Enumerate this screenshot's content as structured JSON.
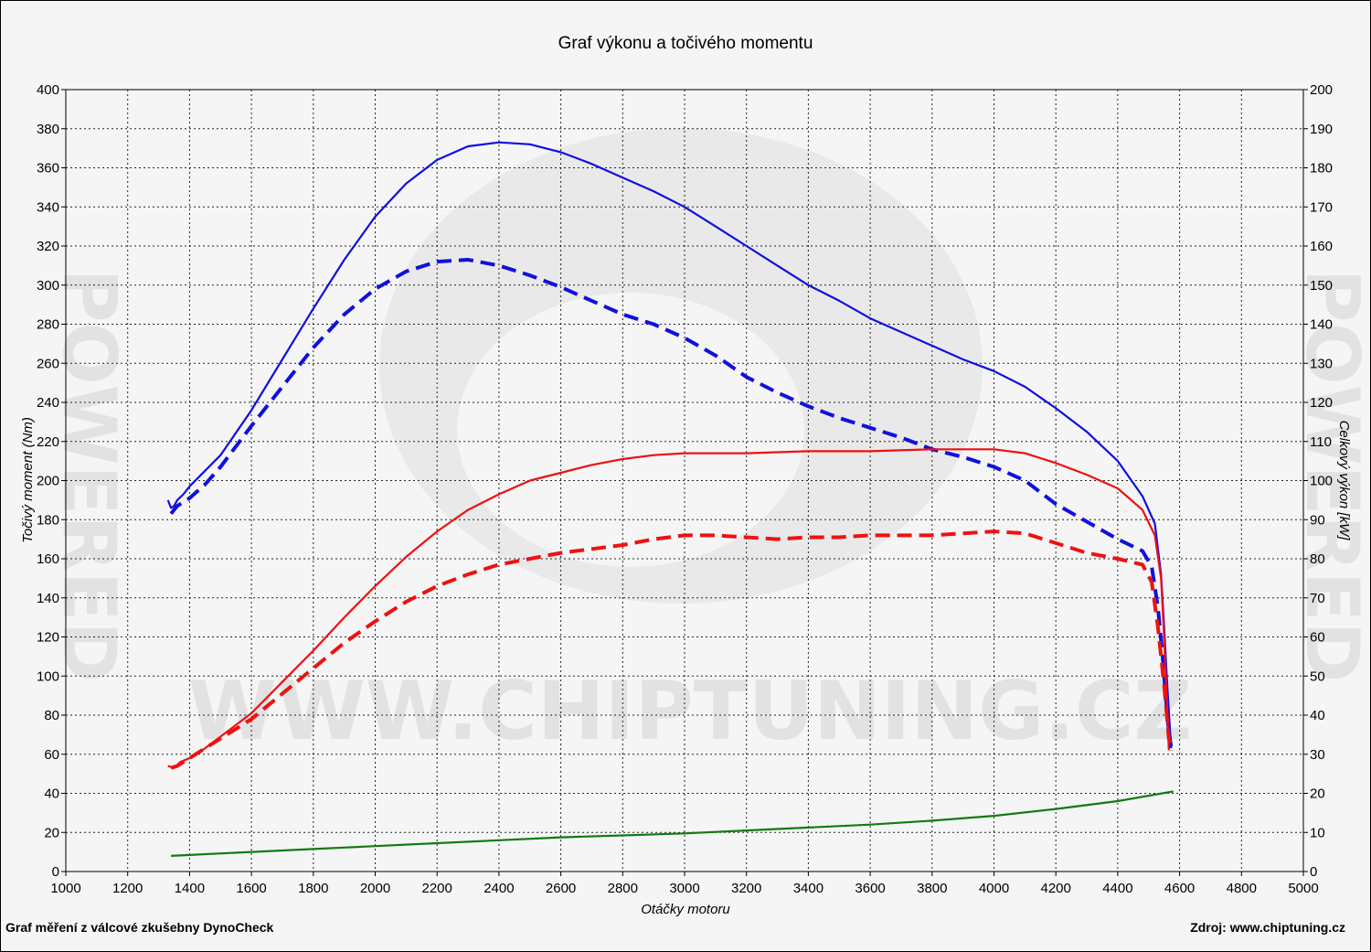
{
  "chart_data": {
    "type": "line",
    "title": "Graf výkonu a točivého momentu",
    "xlabel": "Otáčky motoru",
    "ylabel_left": "Točivý moment (Nm)",
    "ylabel_right": "Celkový výkon [kW]",
    "xlim": [
      1000,
      5000
    ],
    "ylim_left": [
      0,
      400
    ],
    "ylim_right": [
      0,
      200
    ],
    "x_ticks": [
      1000,
      1200,
      1400,
      1600,
      1800,
      2000,
      2200,
      2400,
      2600,
      2800,
      3000,
      3200,
      3400,
      3600,
      3800,
      4000,
      4200,
      4400,
      4600,
      4800,
      5000
    ],
    "y_ticks_left": [
      0,
      20,
      40,
      60,
      80,
      100,
      120,
      140,
      160,
      180,
      200,
      220,
      240,
      260,
      280,
      300,
      320,
      340,
      360,
      380,
      400
    ],
    "y_ticks_right": [
      0,
      10,
      20,
      30,
      40,
      50,
      60,
      70,
      80,
      90,
      100,
      110,
      120,
      130,
      140,
      150,
      160,
      170,
      180,
      190,
      200
    ],
    "grid": true,
    "series": [
      {
        "axis": "left",
        "color": "#1010dd",
        "style": "solid",
        "points": [
          [
            1330,
            190
          ],
          [
            1340,
            186
          ],
          [
            1350,
            187
          ],
          [
            1360,
            190
          ],
          [
            1380,
            193
          ],
          [
            1400,
            197
          ],
          [
            1450,
            205
          ],
          [
            1500,
            213
          ],
          [
            1600,
            236
          ],
          [
            1700,
            262
          ],
          [
            1800,
            288
          ],
          [
            1900,
            313
          ],
          [
            2000,
            335
          ],
          [
            2100,
            352
          ],
          [
            2200,
            364
          ],
          [
            2300,
            371
          ],
          [
            2400,
            373
          ],
          [
            2500,
            372
          ],
          [
            2600,
            368
          ],
          [
            2700,
            362
          ],
          [
            2800,
            355
          ],
          [
            2900,
            348
          ],
          [
            3000,
            340
          ],
          [
            3100,
            330
          ],
          [
            3200,
            320
          ],
          [
            3300,
            310
          ],
          [
            3400,
            300
          ],
          [
            3500,
            292
          ],
          [
            3600,
            283
          ],
          [
            3700,
            276
          ],
          [
            3800,
            269
          ],
          [
            3900,
            262
          ],
          [
            4000,
            256
          ],
          [
            4100,
            248
          ],
          [
            4200,
            237
          ],
          [
            4300,
            225
          ],
          [
            4400,
            210
          ],
          [
            4480,
            192
          ],
          [
            4520,
            178
          ],
          [
            4540,
            152
          ],
          [
            4550,
            125
          ],
          [
            4560,
            95
          ],
          [
            4570,
            70
          ],
          [
            4575,
            64
          ]
        ]
      },
      {
        "axis": "left",
        "color": "#1010dd",
        "style": "dashed",
        "points": [
          [
            1340,
            183
          ],
          [
            1360,
            187
          ],
          [
            1400,
            191
          ],
          [
            1450,
            198
          ],
          [
            1500,
            207
          ],
          [
            1600,
            228
          ],
          [
            1700,
            248
          ],
          [
            1800,
            268
          ],
          [
            1900,
            285
          ],
          [
            2000,
            298
          ],
          [
            2100,
            307
          ],
          [
            2200,
            312
          ],
          [
            2300,
            313
          ],
          [
            2400,
            310
          ],
          [
            2500,
            305
          ],
          [
            2600,
            299
          ],
          [
            2700,
            292
          ],
          [
            2800,
            285
          ],
          [
            2900,
            280
          ],
          [
            3000,
            273
          ],
          [
            3100,
            264
          ],
          [
            3200,
            253
          ],
          [
            3300,
            245
          ],
          [
            3400,
            238
          ],
          [
            3500,
            232
          ],
          [
            3600,
            227
          ],
          [
            3700,
            222
          ],
          [
            3800,
            216
          ],
          [
            3900,
            212
          ],
          [
            4000,
            207
          ],
          [
            4100,
            200
          ],
          [
            4200,
            188
          ],
          [
            4300,
            179
          ],
          [
            4400,
            170
          ],
          [
            4480,
            164
          ],
          [
            4510,
            156
          ],
          [
            4530,
            135
          ],
          [
            4545,
            110
          ],
          [
            4560,
            80
          ],
          [
            4570,
            63
          ]
        ]
      },
      {
        "axis": "left",
        "color": "#ee1111",
        "style": "solid",
        "points": [
          [
            1330,
            54
          ],
          [
            1350,
            53
          ],
          [
            1370,
            56
          ],
          [
            1400,
            58
          ],
          [
            1450,
            63
          ],
          [
            1500,
            69
          ],
          [
            1600,
            81
          ],
          [
            1700,
            97
          ],
          [
            1800,
            113
          ],
          [
            1900,
            130
          ],
          [
            2000,
            146
          ],
          [
            2100,
            161
          ],
          [
            2200,
            174
          ],
          [
            2300,
            185
          ],
          [
            2400,
            193
          ],
          [
            2500,
            200
          ],
          [
            2600,
            204
          ],
          [
            2700,
            208
          ],
          [
            2800,
            211
          ],
          [
            2900,
            213
          ],
          [
            3000,
            214
          ],
          [
            3200,
            214
          ],
          [
            3400,
            215
          ],
          [
            3600,
            215
          ],
          [
            3800,
            216
          ],
          [
            4000,
            216
          ],
          [
            4100,
            214
          ],
          [
            4200,
            209
          ],
          [
            4300,
            203
          ],
          [
            4400,
            196
          ],
          [
            4480,
            185
          ],
          [
            4520,
            172
          ],
          [
            4540,
            150
          ],
          [
            4550,
            120
          ],
          [
            4558,
            90
          ],
          [
            4565,
            62
          ]
        ]
      },
      {
        "axis": "left",
        "color": "#ee1111",
        "style": "dashed",
        "points": [
          [
            1340,
            53
          ],
          [
            1360,
            54
          ],
          [
            1400,
            58
          ],
          [
            1450,
            63
          ],
          [
            1500,
            68
          ],
          [
            1600,
            78
          ],
          [
            1700,
            91
          ],
          [
            1800,
            104
          ],
          [
            1900,
            117
          ],
          [
            2000,
            128
          ],
          [
            2100,
            138
          ],
          [
            2200,
            146
          ],
          [
            2300,
            152
          ],
          [
            2400,
            157
          ],
          [
            2500,
            160
          ],
          [
            2600,
            163
          ],
          [
            2700,
            165
          ],
          [
            2800,
            167
          ],
          [
            2900,
            170
          ],
          [
            3000,
            172
          ],
          [
            3100,
            172
          ],
          [
            3200,
            171
          ],
          [
            3300,
            170
          ],
          [
            3400,
            171
          ],
          [
            3500,
            171
          ],
          [
            3600,
            172
          ],
          [
            3700,
            172
          ],
          [
            3800,
            172
          ],
          [
            3900,
            173
          ],
          [
            4000,
            174
          ],
          [
            4100,
            173
          ],
          [
            4200,
            168
          ],
          [
            4300,
            163
          ],
          [
            4400,
            160
          ],
          [
            4480,
            157
          ],
          [
            4510,
            148
          ],
          [
            4530,
            125
          ],
          [
            4550,
            95
          ],
          [
            4565,
            68
          ],
          [
            4575,
            62
          ]
        ]
      },
      {
        "axis": "left",
        "color": "#127a12",
        "style": "solid",
        "points": [
          [
            1340,
            8
          ],
          [
            1600,
            10
          ],
          [
            1800,
            11.5
          ],
          [
            2000,
            13
          ],
          [
            2200,
            14.5
          ],
          [
            2400,
            16
          ],
          [
            2600,
            17.5
          ],
          [
            2800,
            18.5
          ],
          [
            3000,
            19.5
          ],
          [
            3200,
            21
          ],
          [
            3400,
            22.5
          ],
          [
            3600,
            24
          ],
          [
            3800,
            26
          ],
          [
            4000,
            28.5
          ],
          [
            4200,
            32
          ],
          [
            4400,
            36
          ],
          [
            4580,
            41
          ]
        ]
      }
    ]
  },
  "footer": {
    "left": "Graf měření z válcové zkušebny DynoCheck",
    "right": "Zdroj: www.chiptuning.cz"
  },
  "watermark": {
    "url_text": "WWW.CHIPTUNING.CZ",
    "side_text": "POWERED"
  }
}
